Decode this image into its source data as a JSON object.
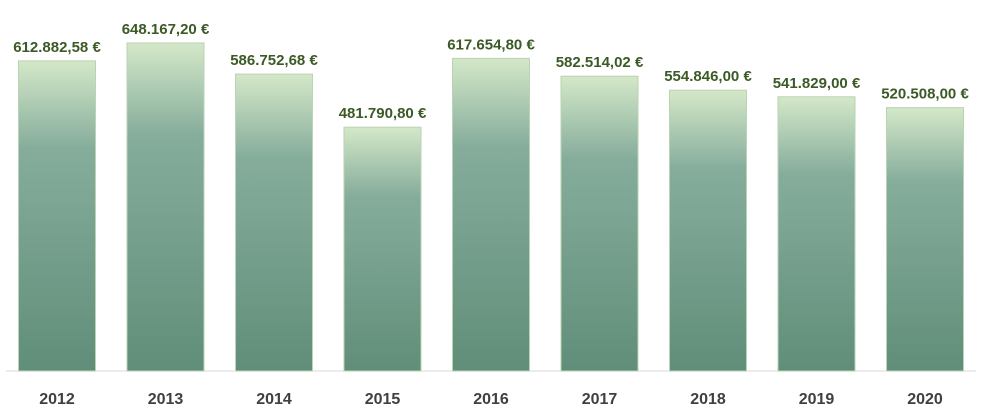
{
  "chart_data": {
    "type": "bar",
    "categories": [
      "2012",
      "2013",
      "2014",
      "2015",
      "2016",
      "2017",
      "2018",
      "2019",
      "2020"
    ],
    "values": [
      612882.58,
      648167.2,
      586752.68,
      481790.8,
      617654.8,
      582514.02,
      554846.0,
      541829.0,
      520508.0
    ],
    "data_labels": [
      "612.882,58 €",
      "648.167,20 €",
      "586.752,68 €",
      "481.790,80 €",
      "617.654,80 €",
      "582.514,02 €",
      "554.846,00 €",
      "541.829,00 €",
      "520.508,00 €"
    ],
    "title": "",
    "xlabel": "",
    "ylabel": "",
    "ylim": [
      0,
      700000
    ],
    "grid": false,
    "legend": "none",
    "colors": {
      "bar_top": "#d4e8c8",
      "bar_mid": "#86ad9c",
      "bar_bottom": "#608e79",
      "bar_border": "#b9d3b3",
      "data_label": "#3b5a25",
      "tick_label": "#404040",
      "baseline": "#d9d9d9"
    }
  }
}
